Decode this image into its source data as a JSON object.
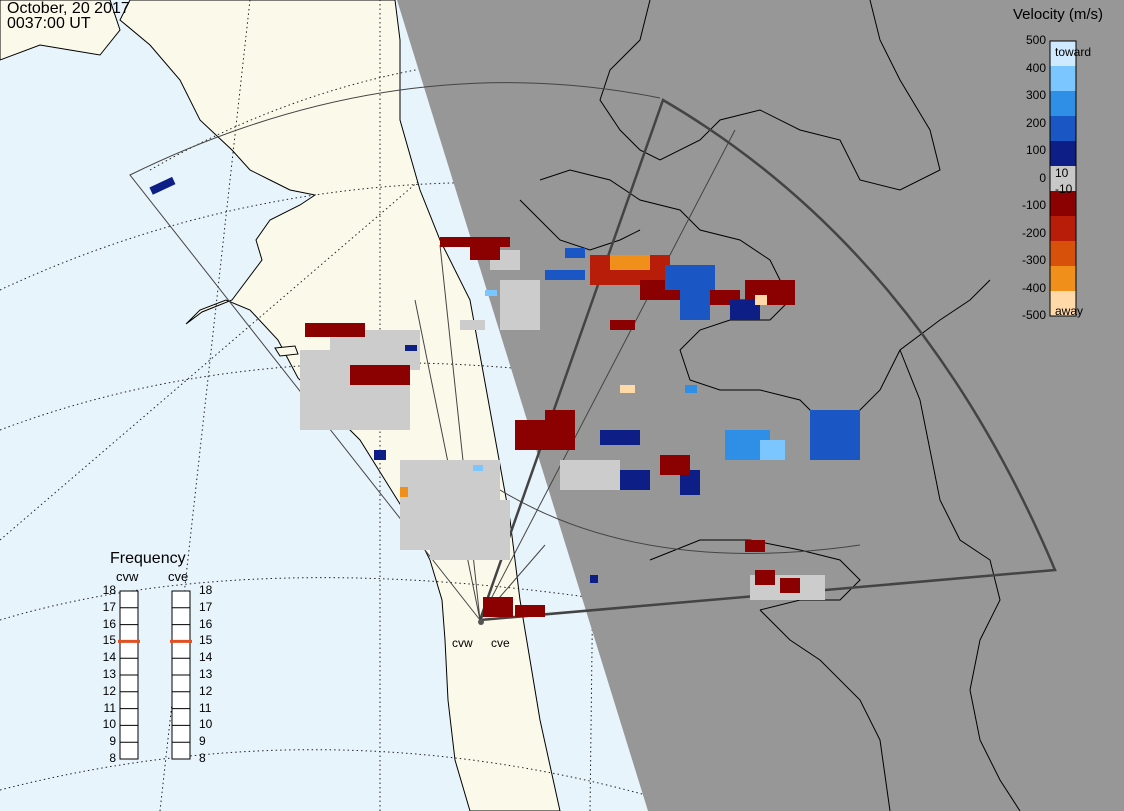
{
  "header": {
    "date": "October, 20 2017",
    "time": "0037:00 UT"
  },
  "colorbar": {
    "title": "Velocity (m/s)",
    "ticks": [
      "500",
      "400",
      "300",
      "200",
      "100",
      "0",
      "-100",
      "-200",
      "-300",
      "-400",
      "-500"
    ],
    "near_zero_pos": "10",
    "near_zero_neg": "-10",
    "top_label": "toward",
    "bottom_label": "away",
    "stops": [
      "#cfeaff",
      "#7cc6ff",
      "#2f8fe6",
      "#1a56c4",
      "#0d1f86",
      "#c8c8c8",
      "#8b0000",
      "#b81d0a",
      "#d8510a",
      "#f0901a",
      "#ffd9a8"
    ]
  },
  "frequency": {
    "title": "Frequency",
    "radars": [
      {
        "name": "cvw",
        "value": 15
      },
      {
        "name": "cve",
        "value": 15
      }
    ],
    "scale": [
      "18",
      "17",
      "16",
      "15",
      "14",
      "13",
      "12",
      "11",
      "10",
      "9",
      "8"
    ],
    "marker_color": "#e05020"
  },
  "radar_sites": {
    "labels": [
      "cvw",
      "cve"
    ]
  },
  "colors": {
    "ocean": "#e8f4fc",
    "land_day": "#fbfaea",
    "night": "#979797",
    "ground_scatter": "#cccccc",
    "coast": "#000000",
    "fov": "#444444"
  }
}
